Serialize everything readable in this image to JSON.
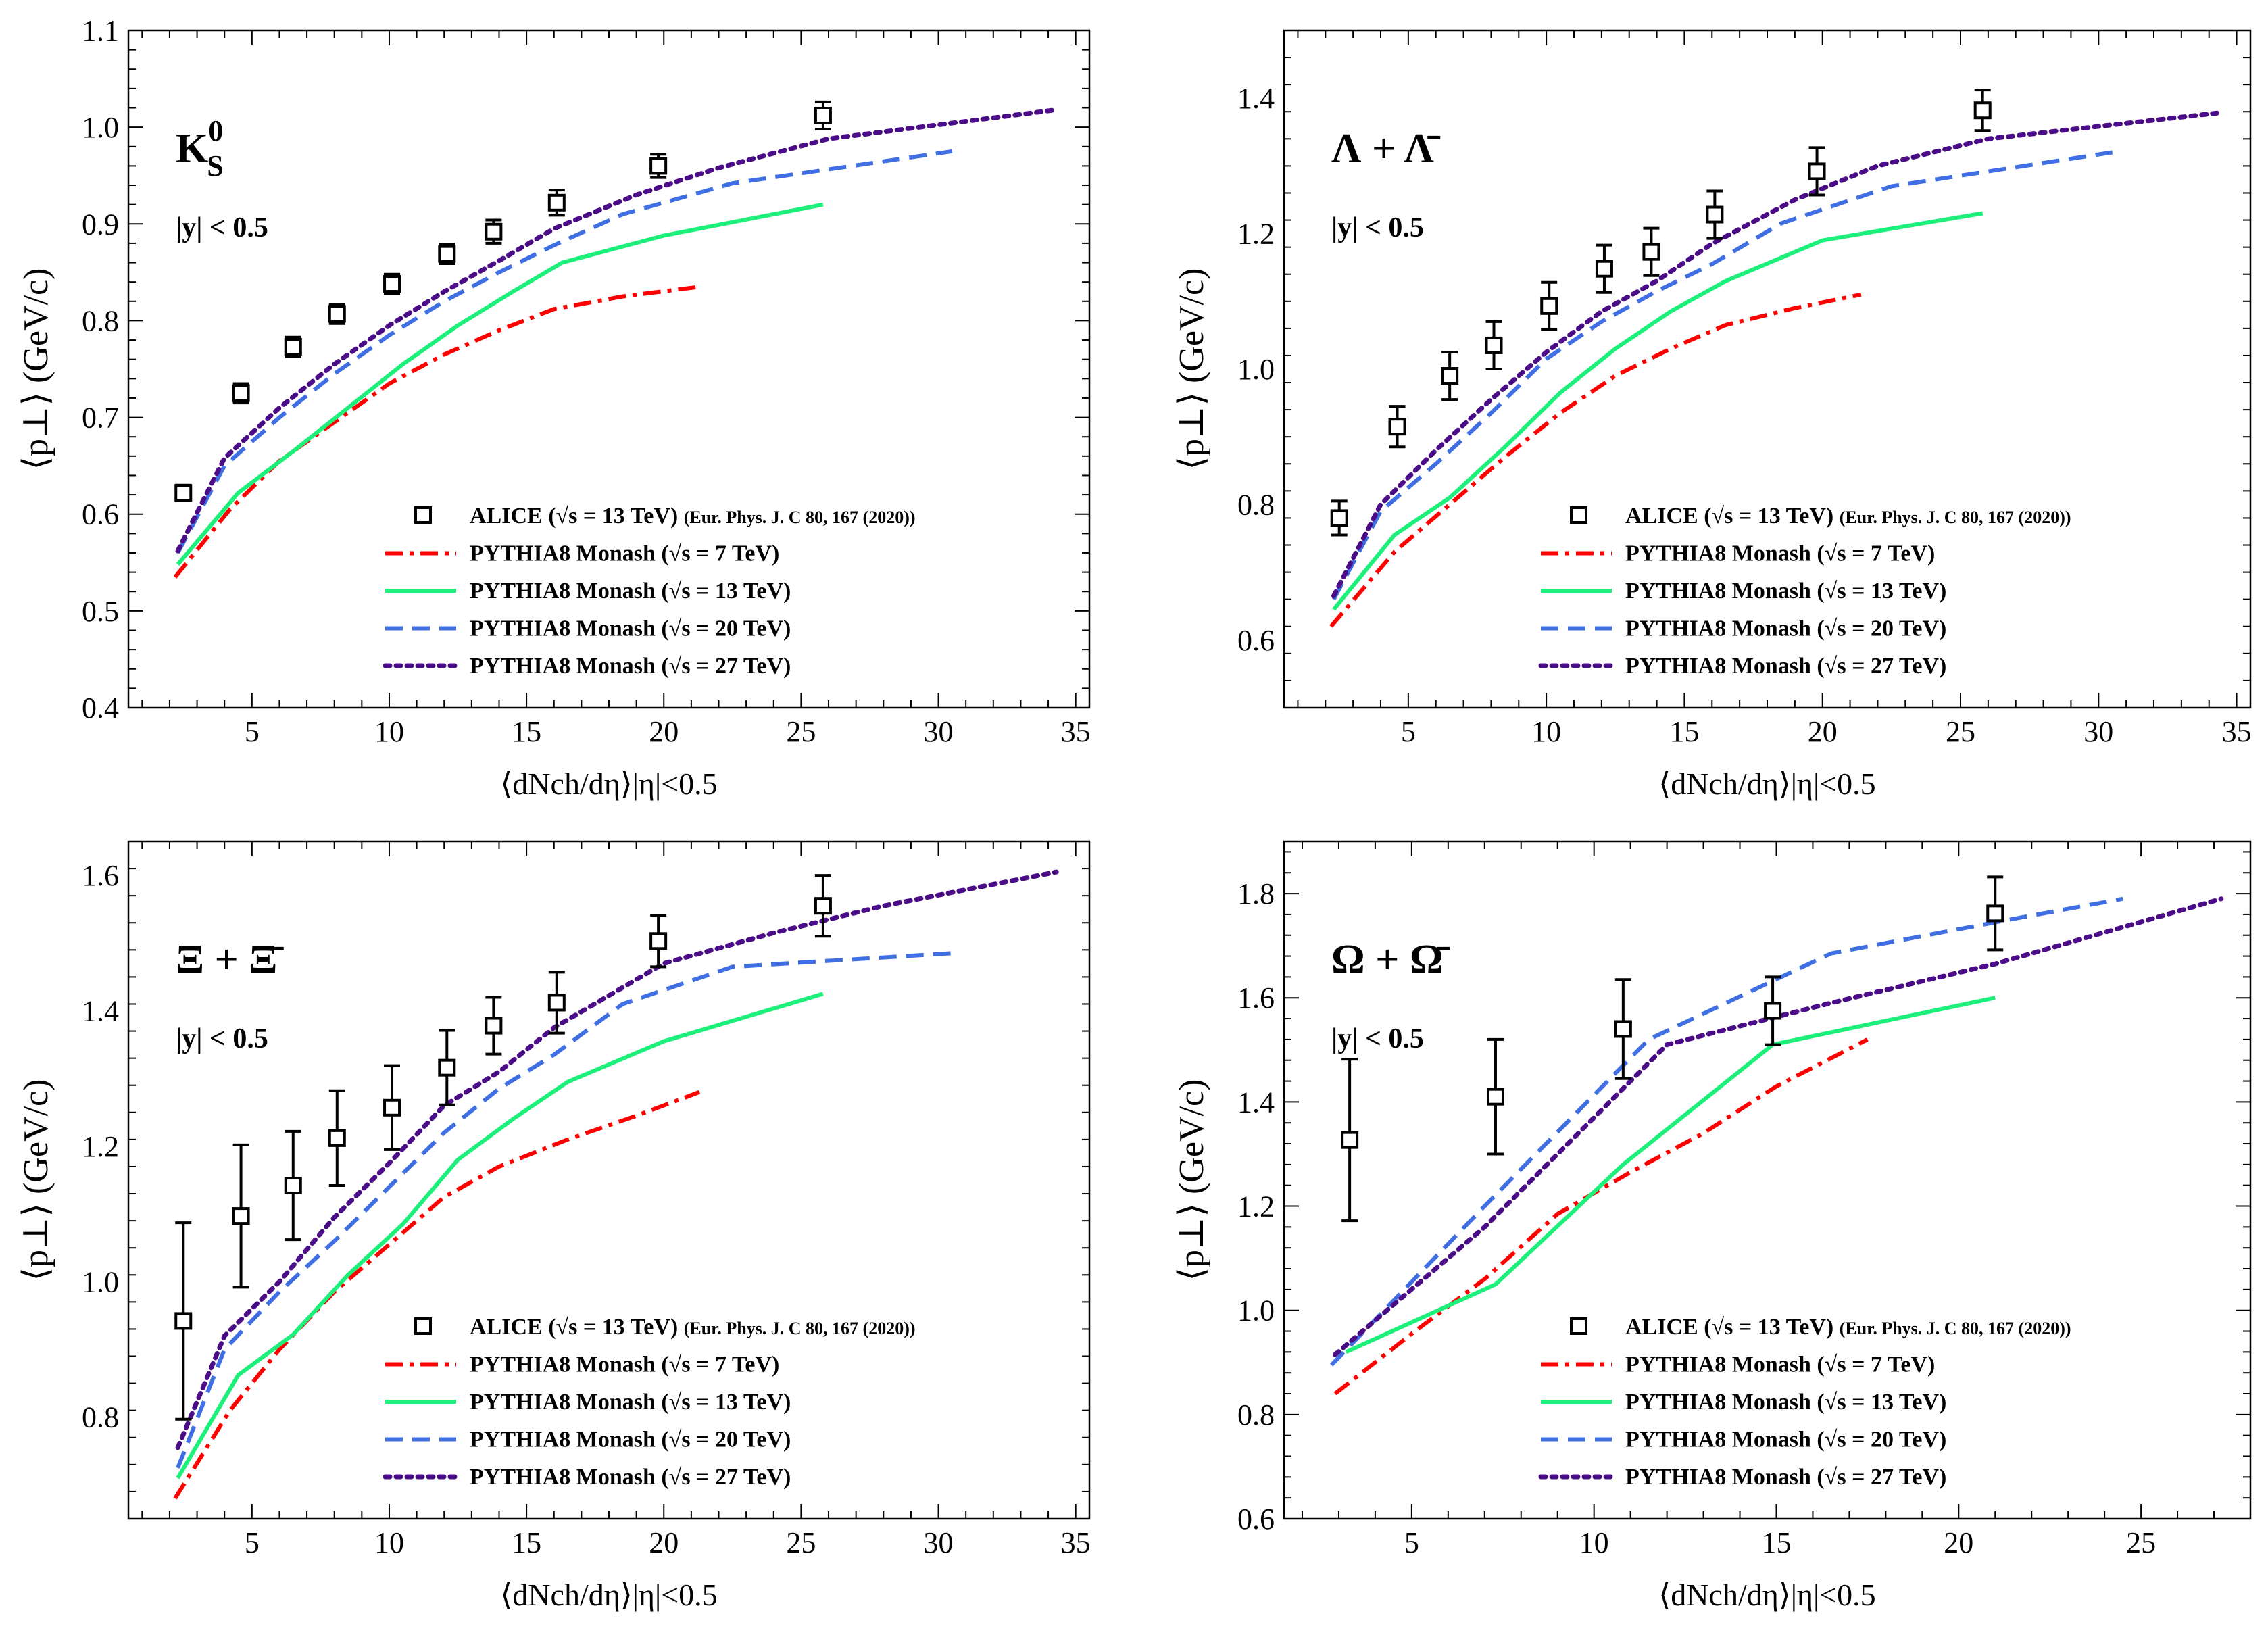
{
  "chart_data": [
    {
      "type": "line",
      "title": "K_S^0",
      "title_main": "K",
      "title_sub": "S",
      "title_sup": "0",
      "rapidity_label": "|y| < 0.5",
      "xlabel": "⟨dNch/dη⟩|η|<0.5",
      "ylabel": "⟨p⊥⟩ (GeV/c)",
      "xlim": [
        0.5,
        35.5
      ],
      "ylim": [
        0.4,
        1.1
      ],
      "xticks": [
        5,
        10,
        15,
        20,
        25,
        30,
        35
      ],
      "yticks": [
        0.4,
        0.5,
        0.6,
        0.7,
        0.8,
        0.9,
        1.0,
        1.1
      ],
      "ytick_decimals": 1,
      "alice": {
        "name": "ALICE (√s = 13 TeV) (Eur. Phys. J. C 80, 167 (2020))",
        "x": [
          2.5,
          4.6,
          6.5,
          8.1,
          10.1,
          12.1,
          13.8,
          16.1,
          19.8,
          25.8
        ],
        "y": [
          0.622,
          0.725,
          0.773,
          0.807,
          0.838,
          0.869,
          0.892,
          0.922,
          0.96,
          1.012
        ],
        "err": [
          0.008,
          0.01,
          0.01,
          0.01,
          0.01,
          0.01,
          0.012,
          0.013,
          0.012,
          0.014
        ]
      },
      "series": [
        {
          "name": "PYTHIA8 Monash (√s = 7 TeV)",
          "color": "#ff0000",
          "dash": "dashdot",
          "x": [
            2.2,
            4.2,
            6.0,
            8.0,
            10.0,
            12.0,
            14.0,
            16.0,
            18.5,
            21.3
          ],
          "y": [
            0.535,
            0.605,
            0.655,
            0.695,
            0.735,
            0.765,
            0.79,
            0.812,
            0.825,
            0.835
          ]
        },
        {
          "name": "PYTHIA8 Monash (√s = 13 TeV)",
          "color": "#1cf07a",
          "dash": "solid",
          "x": [
            2.3,
            4.5,
            6.5,
            8.5,
            10.5,
            12.5,
            14.5,
            16.3,
            20.0,
            25.8
          ],
          "y": [
            0.548,
            0.622,
            0.665,
            0.71,
            0.755,
            0.795,
            0.83,
            0.86,
            0.888,
            0.92
          ]
        },
        {
          "name": "PYTHIA8 Monash (√s = 20 TeV)",
          "color": "#3f6fe3",
          "dash": "dashed",
          "x": [
            2.3,
            4.0,
            6.0,
            8.0,
            10.0,
            12.0,
            14.0,
            16.0,
            18.5,
            22.5,
            30.5
          ],
          "y": [
            0.56,
            0.65,
            0.7,
            0.745,
            0.785,
            0.82,
            0.85,
            0.878,
            0.91,
            0.942,
            0.975
          ]
        },
        {
          "name": "PYTHIA8 Monash (√s = 27 TeV)",
          "color": "#4b0c87",
          "dash": "dotted",
          "x": [
            2.3,
            4.0,
            6.0,
            8.0,
            10.0,
            12.0,
            14.0,
            16.0,
            19.0,
            22.0,
            26.0,
            34.3
          ],
          "y": [
            0.562,
            0.658,
            0.71,
            0.755,
            0.795,
            0.83,
            0.862,
            0.895,
            0.93,
            0.958,
            0.988,
            1.018
          ]
        }
      ]
    },
    {
      "type": "line",
      "title": "Λ + Λ̄",
      "title_main": "Λ + Λ̄",
      "title_sub": "",
      "title_sup": "",
      "rapidity_label": "|y| < 0.5",
      "xlabel": "⟨dNch/dη⟩|η|<0.5",
      "ylabel": "⟨p⊥⟩ (GeV/c)",
      "xlim": [
        0.5,
        35.5
      ],
      "ylim": [
        0.5,
        1.5
      ],
      "xticks": [
        5,
        10,
        15,
        20,
        25,
        30,
        35
      ],
      "yticks": [
        0.6,
        0.8,
        1.0,
        1.2,
        1.4
      ],
      "ytick_decimals": 1,
      "alice": {
        "name": "ALICE (√s = 13 TeV) (Eur. Phys. J. C 80, 167 (2020))",
        "x": [
          2.5,
          4.6,
          6.5,
          8.1,
          10.1,
          12.1,
          13.8,
          16.1,
          19.8,
          25.8
        ],
        "y": [
          0.78,
          0.915,
          0.99,
          1.035,
          1.093,
          1.148,
          1.173,
          1.228,
          1.292,
          1.382
        ],
        "err": [
          0.025,
          0.03,
          0.035,
          0.035,
          0.035,
          0.035,
          0.035,
          0.035,
          0.035,
          0.03
        ]
      },
      "series": [
        {
          "name": "PYTHIA8 Monash (√s = 7 TeV)",
          "color": "#ff0000",
          "dash": "dashdot",
          "x": [
            2.2,
            4.5,
            6.5,
            8.5,
            10.5,
            12.5,
            14.5,
            16.5,
            19.0,
            21.4
          ],
          "y": [
            0.62,
            0.73,
            0.8,
            0.87,
            0.935,
            0.99,
            1.03,
            1.065,
            1.09,
            1.11
          ]
        },
        {
          "name": "PYTHIA8 Monash (√s = 13 TeV)",
          "color": "#1cf07a",
          "dash": "solid",
          "x": [
            2.3,
            4.5,
            6.5,
            8.5,
            10.5,
            12.5,
            14.5,
            16.5,
            20.0,
            25.8
          ],
          "y": [
            0.645,
            0.755,
            0.81,
            0.885,
            0.965,
            1.03,
            1.085,
            1.13,
            1.19,
            1.23
          ]
        },
        {
          "name": "PYTHIA8 Monash (√s = 20 TeV)",
          "color": "#3f6fe3",
          "dash": "dashed",
          "x": [
            2.3,
            4.0,
            6.0,
            8.0,
            10.0,
            12.0,
            14.0,
            16.0,
            18.5,
            22.5,
            30.5
          ],
          "y": [
            0.66,
            0.79,
            0.86,
            0.935,
            1.015,
            1.07,
            1.115,
            1.155,
            1.215,
            1.27,
            1.32
          ]
        },
        {
          "name": "PYTHIA8 Monash (√s = 27 TeV)",
          "color": "#4b0c87",
          "dash": "dotted",
          "x": [
            2.3,
            4.0,
            6.0,
            8.0,
            10.0,
            12.0,
            14.0,
            16.0,
            19.0,
            22.0,
            26.0,
            34.3
          ],
          "y": [
            0.665,
            0.8,
            0.88,
            0.955,
            1.025,
            1.085,
            1.13,
            1.185,
            1.25,
            1.3,
            1.34,
            1.378
          ]
        }
      ]
    },
    {
      "type": "line",
      "title": "Ξ + Ξ̄",
      "title_main": "Ξ + Ξ̄",
      "title_sub": "",
      "title_sup": "",
      "rapidity_label": "|y| < 0.5",
      "xlabel": "⟨dNch/dη⟩|η|<0.5",
      "ylabel": "⟨p⊥⟩ (GeV/c)",
      "xlim": [
        0.5,
        35.5
      ],
      "ylim": [
        0.65,
        1.65
      ],
      "xticks": [
        5,
        10,
        15,
        20,
        25,
        30,
        35
      ],
      "yticks": [
        0.8,
        1.0,
        1.2,
        1.4,
        1.6
      ],
      "ytick_decimals": 1,
      "alice": {
        "name": "ALICE (√s = 13 TeV) (Eur. Phys. J. C 80, 167 (2020))",
        "x": [
          2.5,
          4.6,
          6.5,
          8.1,
          10.1,
          12.1,
          13.8,
          16.1,
          19.8,
          25.8
        ],
        "y": [
          0.942,
          1.097,
          1.142,
          1.212,
          1.257,
          1.316,
          1.378,
          1.412,
          1.503,
          1.555
        ],
        "err": [
          0.145,
          0.105,
          0.08,
          0.07,
          0.062,
          0.055,
          0.042,
          0.045,
          0.038,
          0.045
        ]
      },
      "series": [
        {
          "name": "PYTHIA8 Monash (√s = 7 TeV)",
          "color": "#ff0000",
          "dash": "dashdot",
          "x": [
            2.2,
            4.2,
            6.0,
            8.0,
            10.0,
            12.0,
            14.0,
            16.5,
            19.0,
            21.3
          ],
          "y": [
            0.68,
            0.81,
            0.9,
            0.985,
            1.055,
            1.125,
            1.17,
            1.21,
            1.245,
            1.28
          ]
        },
        {
          "name": "PYTHIA8 Monash (√s = 13 TeV)",
          "color": "#1cf07a",
          "dash": "solid",
          "x": [
            2.3,
            4.5,
            6.5,
            8.5,
            10.5,
            12.5,
            14.5,
            16.5,
            20.0,
            25.8
          ],
          "y": [
            0.71,
            0.862,
            0.922,
            1.01,
            1.085,
            1.18,
            1.24,
            1.295,
            1.355,
            1.425
          ]
        },
        {
          "name": "PYTHIA8 Monash (√s = 20 TeV)",
          "color": "#3f6fe3",
          "dash": "dashed",
          "x": [
            2.3,
            4.0,
            6.0,
            8.0,
            10.0,
            12.0,
            14.0,
            16.0,
            18.5,
            22.5,
            30.5
          ],
          "y": [
            0.725,
            0.9,
            0.985,
            1.06,
            1.14,
            1.22,
            1.285,
            1.335,
            1.41,
            1.465,
            1.485
          ]
        },
        {
          "name": "PYTHIA8 Monash (√s = 27 TeV)",
          "color": "#4b0c87",
          "dash": "dotted",
          "x": [
            2.3,
            4.0,
            6.0,
            8.0,
            10.0,
            12.0,
            14.0,
            16.0,
            20.0,
            24.0,
            28.0,
            34.3
          ],
          "y": [
            0.755,
            0.92,
            1.0,
            1.095,
            1.175,
            1.26,
            1.31,
            1.375,
            1.47,
            1.515,
            1.555,
            1.605
          ]
        }
      ]
    },
    {
      "type": "line",
      "title": "Ω + Ω̄",
      "title_main": "Ω + Ω̄",
      "title_sub": "",
      "title_sup": "",
      "rapidity_label": "|y| < 0.5",
      "xlabel": "⟨dNch/dη⟩|η|<0.5",
      "ylabel": "⟨p⊥⟩ (GeV/c)",
      "xlim": [
        1.5,
        28.0
      ],
      "ylim": [
        0.6,
        1.9
      ],
      "xticks": [
        5,
        10,
        15,
        20,
        25
      ],
      "yticks": [
        0.6,
        0.8,
        1.0,
        1.2,
        1.4,
        1.6,
        1.8
      ],
      "ytick_decimals": 1,
      "alice": {
        "name": "ALICE (√s = 13 TeV) (Eur. Phys. J. C 80, 167 (2020))",
        "x": [
          3.3,
          7.3,
          10.8,
          14.9,
          21.0
        ],
        "y": [
          1.327,
          1.41,
          1.54,
          1.575,
          1.762
        ],
        "err": [
          0.155,
          0.11,
          0.095,
          0.065,
          0.07
        ]
      },
      "series": [
        {
          "name": "PYTHIA8 Monash (√s = 7 TeV)",
          "color": "#ff0000",
          "dash": "dashdot",
          "x": [
            2.9,
            5.0,
            7.0,
            9.0,
            11.0,
            13.0,
            15.0,
            17.5
          ],
          "y": [
            0.84,
            0.955,
            1.06,
            1.185,
            1.265,
            1.34,
            1.43,
            1.52
          ]
        },
        {
          "name": "PYTHIA8 Monash (√s = 13 TeV)",
          "color": "#1cf07a",
          "dash": "solid",
          "x": [
            3.2,
            7.3,
            10.8,
            14.9,
            21.0
          ],
          "y": [
            0.92,
            1.05,
            1.28,
            1.51,
            1.6
          ]
        },
        {
          "name": "PYTHIA8 Monash (√s = 20 TeV)",
          "color": "#3f6fe3",
          "dash": "dashed",
          "x": [
            2.8,
            7.0,
            11.5,
            16.5,
            21.0,
            24.5
          ],
          "y": [
            0.895,
            1.2,
            1.52,
            1.685,
            1.745,
            1.79
          ]
        },
        {
          "name": "PYTHIA8 Monash (√s = 27 TeV)",
          "color": "#4b0c87",
          "dash": "dotted",
          "x": [
            2.9,
            7.0,
            12.0,
            16.5,
            21.0,
            27.2
          ],
          "y": [
            0.915,
            1.16,
            1.51,
            1.59,
            1.665,
            1.79
          ]
        }
      ]
    }
  ]
}
